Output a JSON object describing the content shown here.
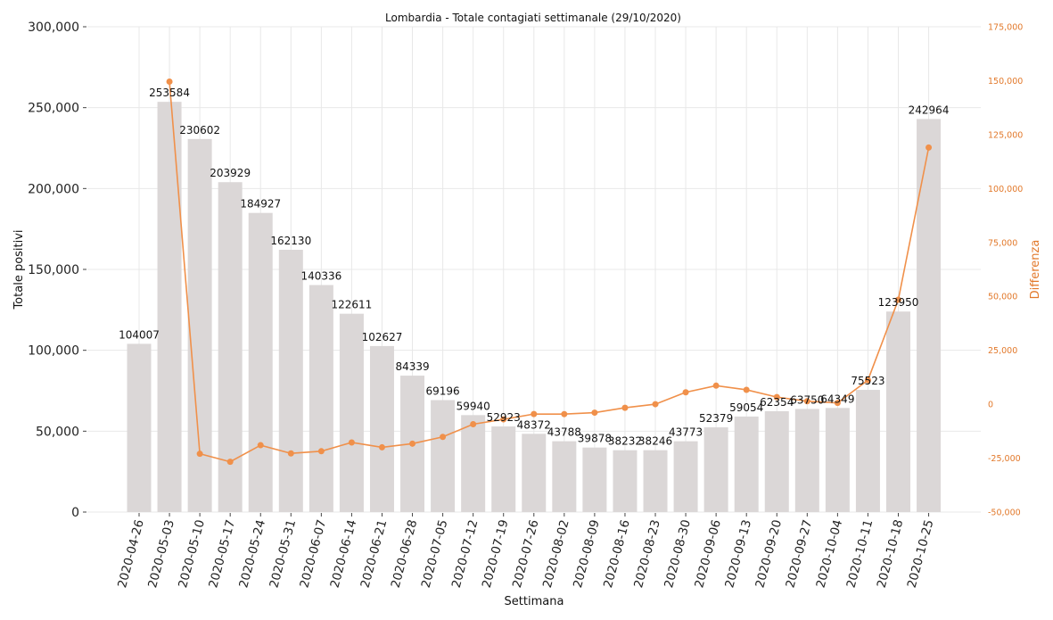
{
  "chart_data": {
    "type": "bar",
    "title": "Lombardia - Totale contagiati settimanale (29/10/2020)",
    "xlabel": "Settimana",
    "ylabel": "Totale positivi",
    "y2label": "Differenza",
    "ylim": [
      0,
      300000
    ],
    "y2lim": [
      -50000,
      175000
    ],
    "yticks": [
      "0",
      "50,000",
      "100,000",
      "150,000",
      "200,000",
      "250,000",
      "300,000"
    ],
    "y2ticks": [
      "-50,000",
      "-25,000",
      "0",
      "25,000",
      "50,000",
      "75,000",
      "100,000",
      "125,000",
      "150,000",
      "175,000"
    ],
    "grid": true,
    "bar_color": "#dbd7d7",
    "line_color": "#f0904a",
    "categories": [
      "2020-04-26",
      "2020-05-03",
      "2020-05-10",
      "2020-05-17",
      "2020-05-24",
      "2020-05-31",
      "2020-06-07",
      "2020-06-14",
      "2020-06-21",
      "2020-06-28",
      "2020-07-05",
      "2020-07-12",
      "2020-07-19",
      "2020-07-26",
      "2020-08-02",
      "2020-08-09",
      "2020-08-16",
      "2020-08-23",
      "2020-08-30",
      "2020-09-06",
      "2020-09-13",
      "2020-09-20",
      "2020-09-27",
      "2020-10-04",
      "2020-10-11",
      "2020-10-18",
      "2020-10-25"
    ],
    "series": [
      {
        "kind": "bar",
        "values": [
          104007,
          253584,
          230602,
          203929,
          184927,
          162130,
          140336,
          122611,
          102627,
          84339,
          69196,
          59940,
          52923,
          48372,
          43788,
          39878,
          38232,
          38246,
          43773,
          52379,
          59054,
          62354,
          63750,
          64349,
          75523,
          123950,
          242964
        ],
        "labels": [
          "104007",
          "253584",
          "230602",
          "203929",
          "184927",
          "162130",
          "140336",
          "122611",
          "102627",
          "84339",
          "69196",
          "59940",
          "52923",
          "48372",
          "43788",
          "39878",
          "38232",
          "38246",
          "43773",
          "52379",
          "59054",
          "62354",
          "63750",
          "64349",
          "75523",
          "123950",
          "242964"
        ]
      },
      {
        "kind": "line",
        "axis": "right",
        "values": [
          null,
          149577,
          -22982,
          -26673,
          -19002,
          -22797,
          -21794,
          -17725,
          -19984,
          -18288,
          -15143,
          -9256,
          -7017,
          -4551,
          -4584,
          -3910,
          -1646,
          14,
          5527,
          8606,
          6675,
          3300,
          1396,
          599,
          11174,
          48427,
          119014
        ]
      }
    ]
  }
}
